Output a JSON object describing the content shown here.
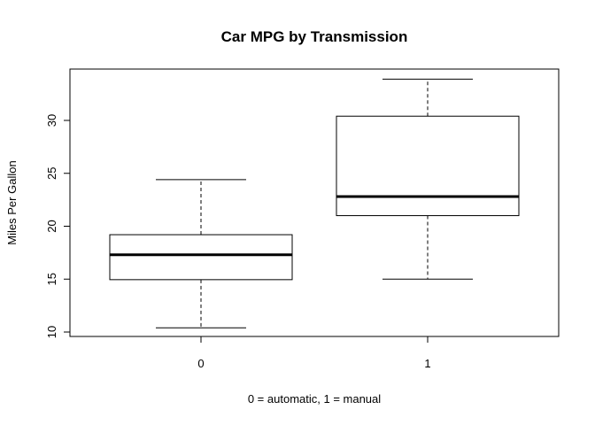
{
  "chart_data": {
    "type": "boxplot",
    "title": "Car MPG by Transmission",
    "xlabel": "0 = automatic, 1 = manual",
    "ylabel": "Miles Per Gallon",
    "categories": [
      "0",
      "1"
    ],
    "boxes": [
      {
        "category": "0",
        "min": 10.4,
        "q1": 14.95,
        "median": 17.3,
        "q3": 19.2,
        "max": 24.4
      },
      {
        "category": "1",
        "min": 15.0,
        "q1": 21.0,
        "median": 22.8,
        "q3": 30.4,
        "max": 33.9
      }
    ],
    "y_ticks": [
      10,
      15,
      20,
      25,
      30
    ],
    "ylim": [
      9.5,
      34.5
    ],
    "grid": false,
    "legend": "none"
  },
  "colors": {
    "background": "#ffffff",
    "line": "#000000"
  }
}
